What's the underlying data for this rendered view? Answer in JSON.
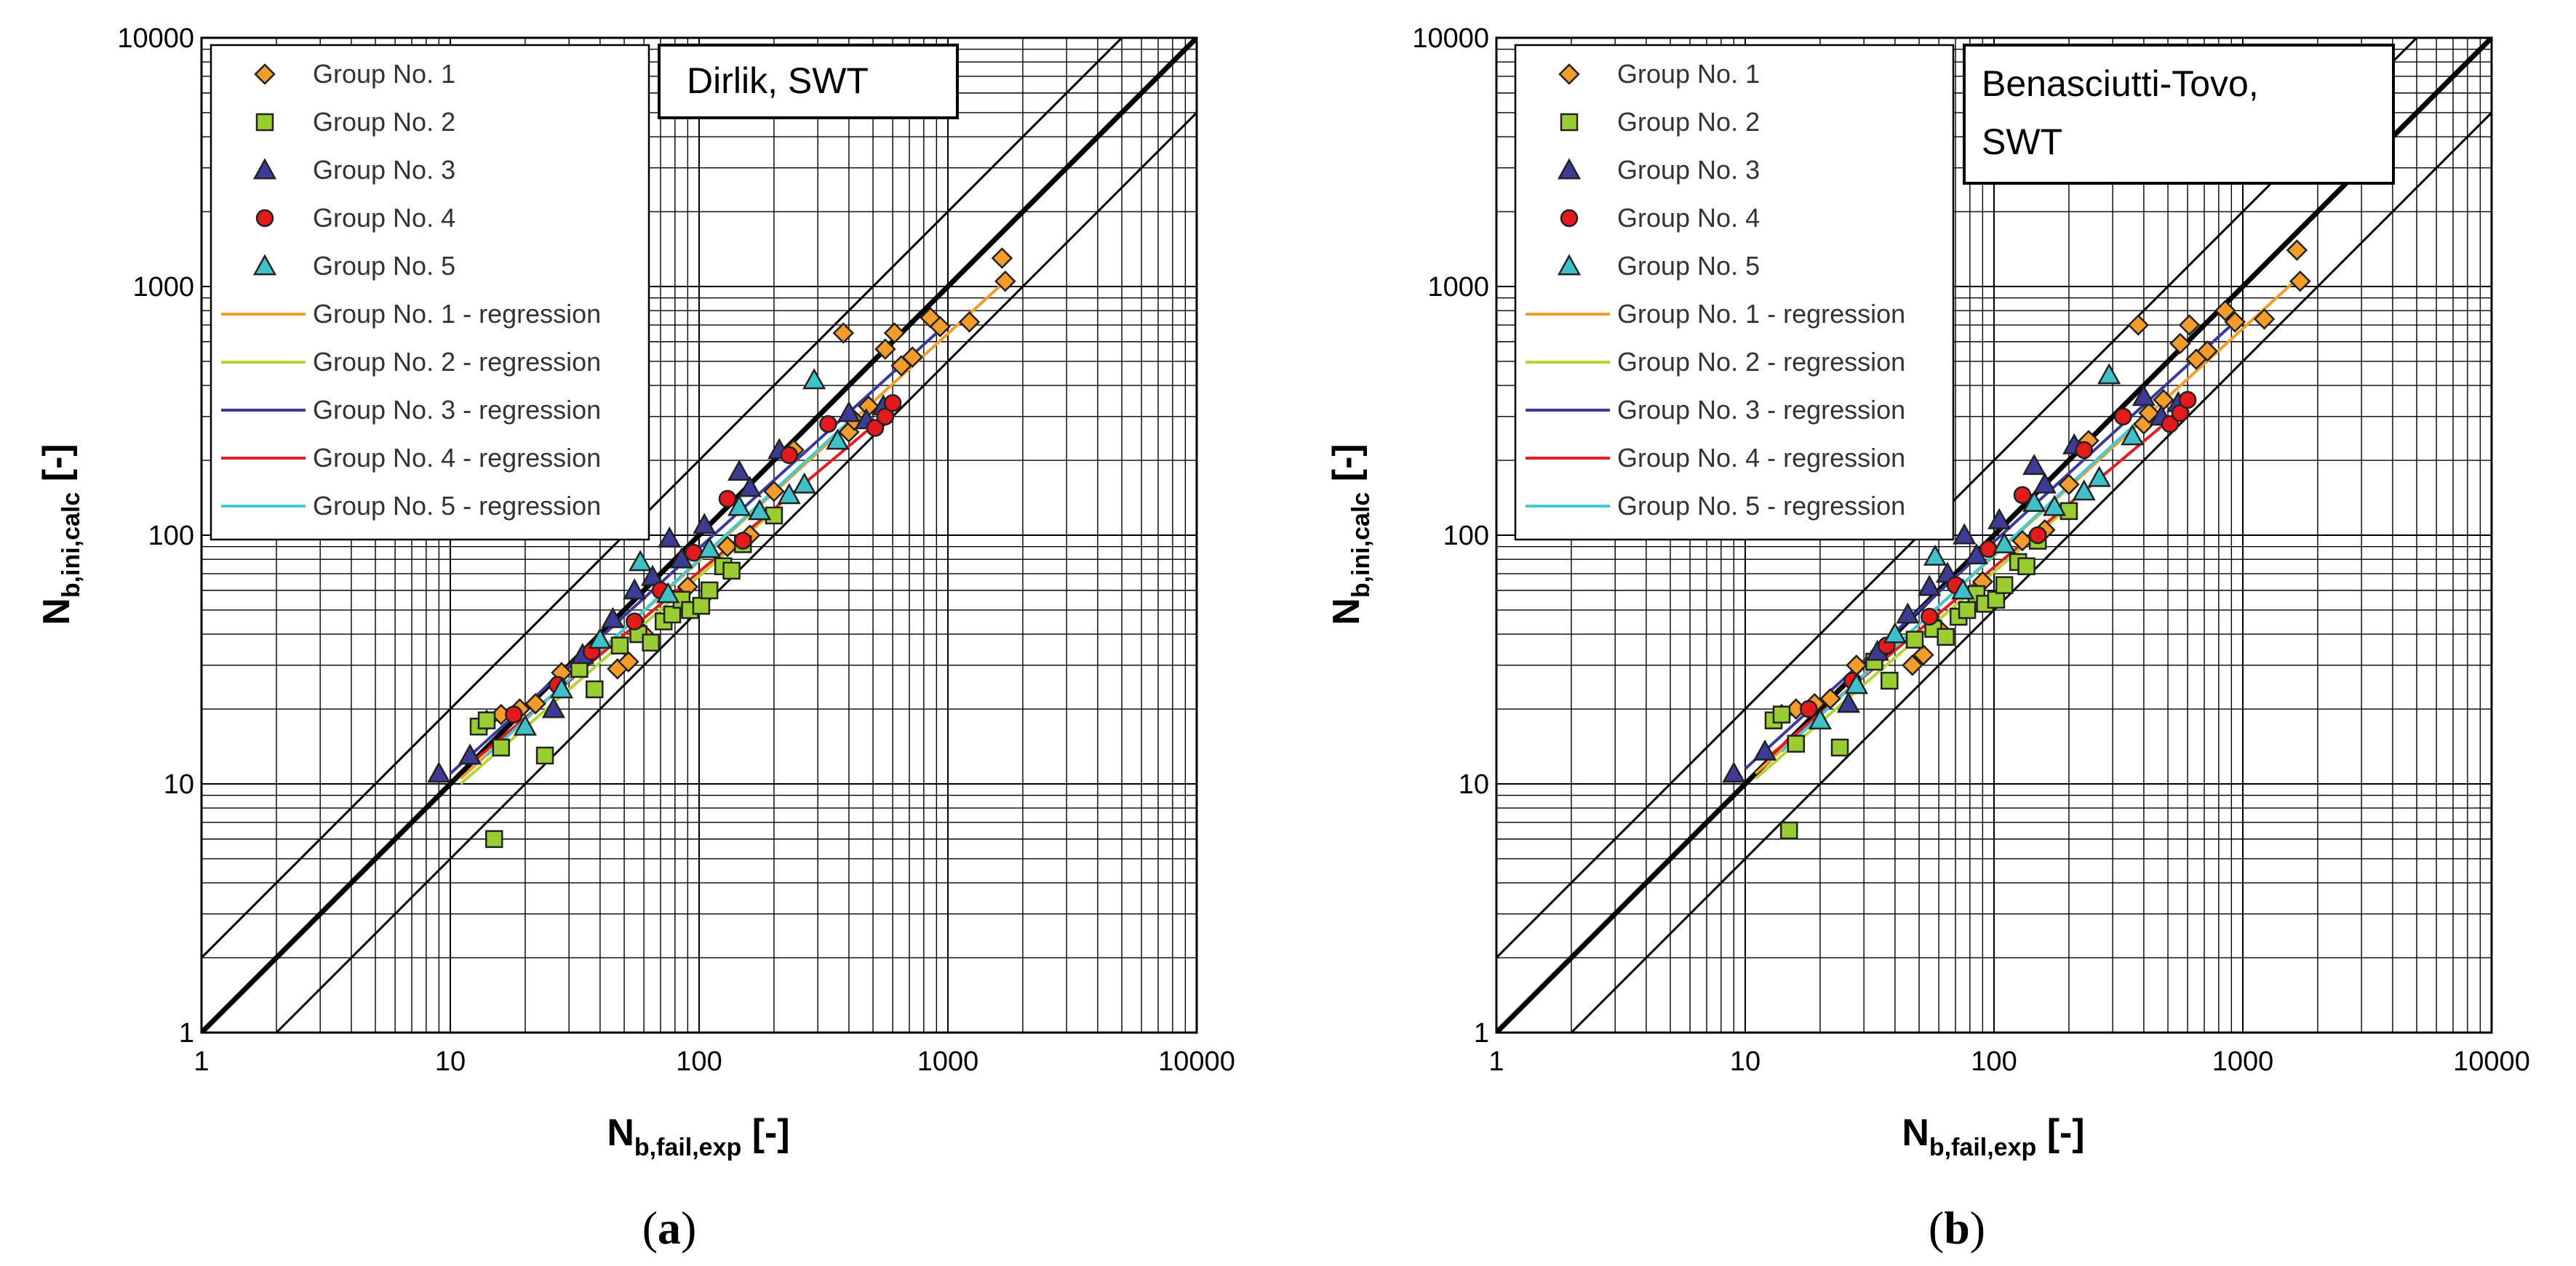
{
  "chart_data": [
    {
      "type": "scatter",
      "panel_label": "a",
      "title": "Dirlik, SWT",
      "x_scale": "log",
      "y_scale": "log",
      "xlim": [
        1,
        10000
      ],
      "ylim": [
        1,
        10000
      ],
      "x_ticks": [
        "1",
        "10",
        "100",
        "1000",
        "10000"
      ],
      "y_ticks": [
        "1",
        "10",
        "100",
        "1000",
        "10000"
      ],
      "xlabel": {
        "main": "N",
        "sub": "b,fail,exp",
        "unit": " [-]"
      },
      "ylabel": {
        "main": "N",
        "sub": "b,ini,calc",
        "unit": " [-]"
      },
      "grid": true,
      "legend_position": "top-left",
      "reference_lines": [
        {
          "label": "",
          "factor": 1,
          "style": "thick"
        },
        {
          "label": "",
          "factor": 2,
          "style": "thin"
        },
        {
          "label": "",
          "factor": 0.5,
          "style": "thin"
        }
      ],
      "series": [
        {
          "name": "Group No. 1",
          "marker": "diamond",
          "color": "#F39C2B",
          "x": [
            14,
            16,
            19,
            22,
            28,
            35,
            47,
            52,
            60,
            90,
            130,
            160,
            200,
            240,
            380,
            400,
            420,
            480,
            560,
            610,
            650,
            720,
            850,
            930,
            1220,
            1650,
            1700
          ],
          "y": [
            18,
            19,
            20,
            21,
            28,
            32,
            29,
            31,
            40,
            62,
            90,
            100,
            150,
            220,
            650,
            260,
            290,
            330,
            560,
            650,
            480,
            520,
            750,
            690,
            720,
            1300,
            1050
          ]
        },
        {
          "name": "Group No. 2",
          "marker": "square",
          "color": "#9ACD32",
          "x": [
            13,
            14,
            15,
            16,
            24,
            33,
            38,
            48,
            57,
            64,
            72,
            78,
            85,
            92,
            102,
            110,
            125,
            135,
            150,
            200
          ],
          "y": [
            17,
            18,
            6,
            14,
            13,
            29,
            24,
            36,
            40,
            37,
            45,
            48,
            55,
            50,
            52,
            60,
            75,
            72,
            92,
            120
          ]
        },
        {
          "name": "Group No. 3",
          "marker": "triangle",
          "color": "#3C3C96",
          "x": [
            9,
            12,
            26,
            34,
            45,
            55,
            65,
            76,
            85,
            105,
            145,
            160,
            210,
            400,
            470,
            550
          ],
          "y": [
            11,
            13,
            20,
            33,
            46,
            60,
            68,
            97,
            80,
            110,
            180,
            155,
            220,
            310,
            290,
            330
          ]
        },
        {
          "name": "Group No. 4",
          "marker": "circle",
          "color": "#E31A1C",
          "x": [
            18,
            27,
            37,
            55,
            70,
            95,
            130,
            150,
            230,
            330,
            510,
            560,
            600
          ],
          "y": [
            19,
            25,
            34,
            45,
            60,
            85,
            140,
            95,
            210,
            280,
            270,
            300,
            340
          ]
        },
        {
          "name": "Group No. 5",
          "marker": "triangle",
          "color": "#3FC1C9",
          "x": [
            20,
            28,
            40,
            58,
            75,
            110,
            145,
            175,
            230,
            265,
            290,
            360
          ],
          "y": [
            17,
            24,
            38,
            78,
            58,
            88,
            130,
            125,
            145,
            160,
            420,
            240
          ]
        }
      ],
      "regressions": [
        {
          "name": "Group No. 1 - regression",
          "color": "#F39C2B",
          "x": [
            11,
            1700
          ],
          "y": [
            10.5,
            1050
          ]
        },
        {
          "name": "Group No. 2 - regression",
          "color": "#B5D432",
          "x": [
            11,
            200
          ],
          "y": [
            10,
            125
          ]
        },
        {
          "name": "Group No. 3 - regression",
          "color": "#3A3A9E",
          "x": [
            10,
            900
          ],
          "y": [
            11,
            650
          ]
        },
        {
          "name": "Group No. 4 - regression",
          "color": "#E02020",
          "x": [
            12,
            620
          ],
          "y": [
            12,
            330
          ]
        },
        {
          "name": "Group No. 5 - regression",
          "color": "#46C8D2",
          "x": [
            14,
            420
          ],
          "y": [
            13,
            300
          ]
        }
      ]
    },
    {
      "type": "scatter",
      "panel_label": "b",
      "title": "Benasciutti-Tovo, SWT",
      "x_scale": "log",
      "y_scale": "log",
      "xlim": [
        1,
        10000
      ],
      "ylim": [
        1,
        10000
      ],
      "x_ticks": [
        "1",
        "10",
        "100",
        "1000",
        "10000"
      ],
      "y_ticks": [
        "1",
        "10",
        "100",
        "1000",
        "10000"
      ],
      "xlabel": {
        "main": "N",
        "sub": "b,fail,exp",
        "unit": " [-]"
      },
      "ylabel": {
        "main": "N",
        "sub": "b,ini,calc",
        "unit": " [-]"
      },
      "grid": true,
      "legend_position": "top-left",
      "reference_lines": [
        {
          "label": "",
          "factor": 1,
          "style": "thick"
        },
        {
          "label": "",
          "factor": 2,
          "style": "thin"
        },
        {
          "label": "",
          "factor": 0.5,
          "style": "thin"
        }
      ],
      "series": [
        {
          "name": "Group No. 1",
          "marker": "diamond",
          "color": "#F39C2B",
          "x": [
            14,
            16,
            19,
            22,
            28,
            35,
            47,
            52,
            60,
            90,
            130,
            160,
            200,
            240,
            380,
            400,
            420,
            480,
            560,
            610,
            650,
            720,
            850,
            930,
            1220,
            1650,
            1700
          ],
          "y": [
            19,
            20,
            21,
            22,
            30,
            34,
            30,
            33,
            42,
            65,
            95,
            105,
            160,
            240,
            700,
            280,
            310,
            350,
            590,
            700,
            510,
            550,
            800,
            720,
            740,
            1400,
            1050
          ]
        },
        {
          "name": "Group No. 2",
          "marker": "square",
          "color": "#9ACD32",
          "x": [
            13,
            14,
            15,
            16,
            24,
            33,
            38,
            48,
            57,
            64,
            72,
            78,
            85,
            92,
            102,
            110,
            125,
            135,
            150,
            200
          ],
          "y": [
            18,
            19,
            6.5,
            14.5,
            14,
            31,
            26,
            38,
            42,
            39,
            47,
            50,
            58,
            53,
            55,
            63,
            78,
            75,
            95,
            125
          ]
        },
        {
          "name": "Group No. 3",
          "marker": "triangle",
          "color": "#3C3C96",
          "x": [
            9,
            12,
            26,
            34,
            45,
            55,
            65,
            76,
            85,
            105,
            145,
            160,
            210,
            400,
            470,
            550
          ],
          "y": [
            11,
            13.5,
            21,
            34,
            48,
            62,
            70,
            100,
            83,
            115,
            190,
            160,
            230,
            360,
            300,
            340
          ]
        },
        {
          "name": "Group No. 4",
          "marker": "circle",
          "color": "#E31A1C",
          "x": [
            18,
            27,
            37,
            55,
            70,
            95,
            130,
            150,
            230,
            330,
            510,
            560,
            600
          ],
          "y": [
            20,
            26,
            36,
            47,
            63,
            88,
            145,
            100,
            220,
            300,
            280,
            310,
            350
          ]
        },
        {
          "name": "Group No. 5",
          "marker": "triangle",
          "color": "#3FC1C9",
          "x": [
            20,
            28,
            40,
            58,
            75,
            110,
            145,
            175,
            230,
            265,
            290,
            360
          ],
          "y": [
            18,
            25,
            40,
            82,
            60,
            92,
            135,
            130,
            150,
            170,
            440,
            250
          ]
        }
      ],
      "regressions": [
        {
          "name": "Group No. 1 - regression",
          "color": "#F39C2B",
          "x": [
            11,
            1700
          ],
          "y": [
            11,
            1100
          ]
        },
        {
          "name": "Group No. 2 - regression",
          "color": "#B5D432",
          "x": [
            11,
            200
          ],
          "y": [
            10.5,
            130
          ]
        },
        {
          "name": "Group No. 3 - regression",
          "color": "#3A3A9E",
          "x": [
            10,
            900
          ],
          "y": [
            11.5,
            700
          ]
        },
        {
          "name": "Group No. 4 - regression",
          "color": "#E02020",
          "x": [
            12,
            620
          ],
          "y": [
            12.5,
            345
          ]
        },
        {
          "name": "Group No. 5 - regression",
          "color": "#46C8D2",
          "x": [
            14,
            420
          ],
          "y": [
            13.5,
            315
          ]
        }
      ]
    }
  ]
}
